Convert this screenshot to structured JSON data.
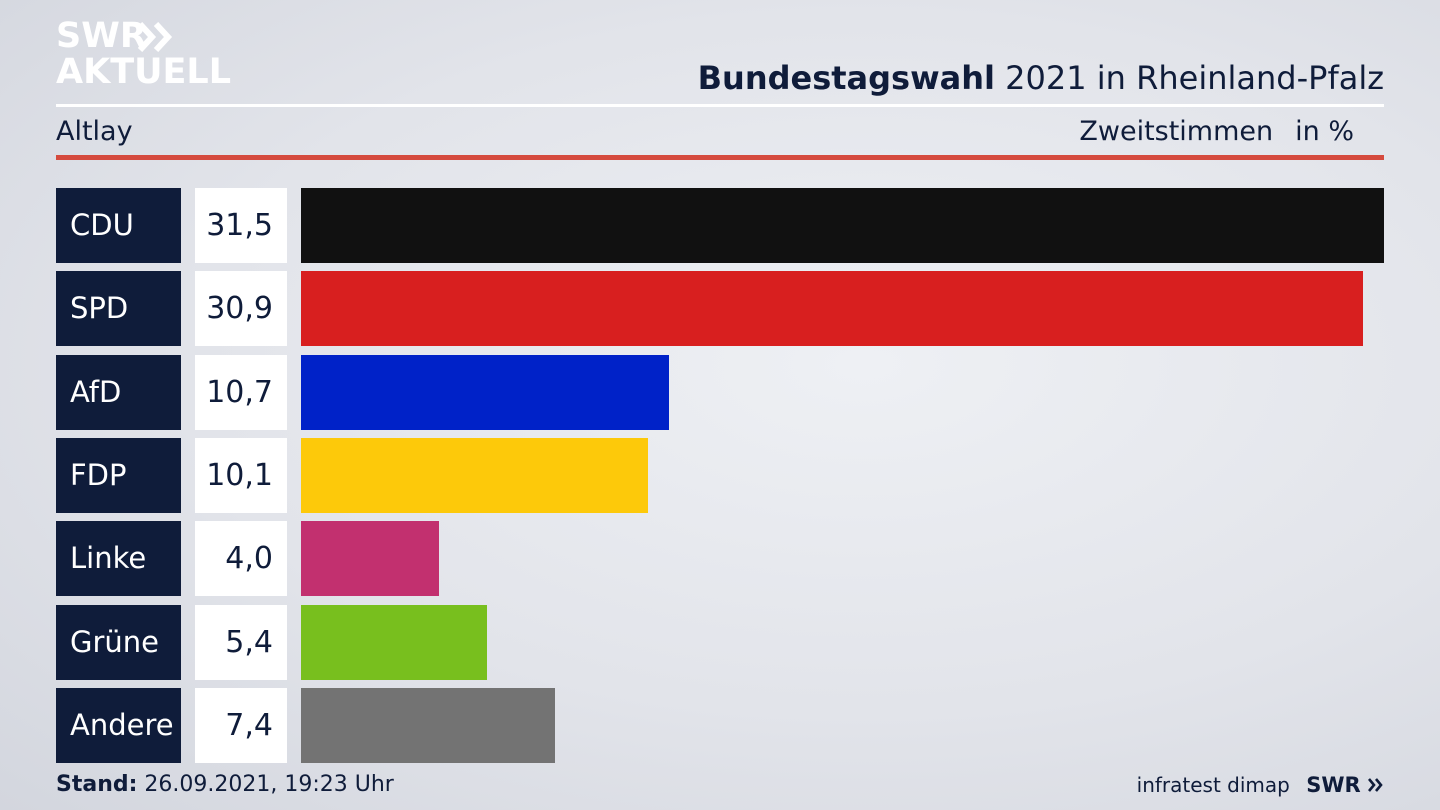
{
  "brand": {
    "logo_line1": "SWR",
    "logo_line2": "AKTUELL",
    "footer_logo": "SWR"
  },
  "header": {
    "title_bold": "Bundestagswahl",
    "title_rest": "2021 in Rheinland-Pfalz",
    "region": "Altlay",
    "measure": "Zweitstimmen",
    "unit": "in %"
  },
  "chart_data": {
    "type": "bar",
    "orientation": "horizontal",
    "title": "Bundestagswahl 2021 in Rheinland-Pfalz",
    "subtitle": "Altlay",
    "categories": [
      "CDU",
      "SPD",
      "AfD",
      "FDP",
      "Linke",
      "Grüne",
      "Andere"
    ],
    "values": [
      31.5,
      30.9,
      10.7,
      10.1,
      4.0,
      5.4,
      7.4
    ],
    "value_labels": [
      "31,5",
      "30,9",
      "10,7",
      "10,1",
      "4,0",
      "5,4",
      "7,4"
    ],
    "colors": [
      "#111111",
      "#d81f1f",
      "#0022c8",
      "#fdc90a",
      "#c2306f",
      "#78bf1e",
      "#737373"
    ],
    "unit": "in %",
    "xlim": [
      0,
      31.5
    ],
    "grid": false
  },
  "footer": {
    "stand_label": "Stand:",
    "stand_value": "26.09.2021, 19:23 Uhr",
    "source": "infratest dimap"
  }
}
